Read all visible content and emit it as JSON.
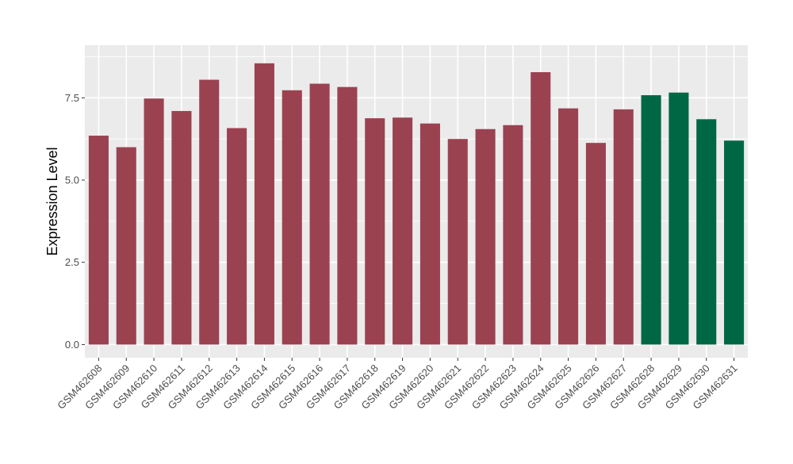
{
  "chart_data": {
    "type": "bar",
    "ylabel": "Expression Level",
    "ylim": [
      -0.4,
      9.1
    ],
    "yticks": [
      0.0,
      2.5,
      5.0,
      7.5
    ],
    "ytick_labels": [
      "0.0",
      "2.5",
      "5.0",
      "7.5"
    ],
    "grid": true,
    "categories": [
      "GSM462608",
      "GSM462609",
      "GSM462610",
      "GSM462611",
      "GSM462612",
      "GSM462613",
      "GSM462614",
      "GSM462615",
      "GSM462616",
      "GSM462617",
      "GSM462618",
      "GSM462619",
      "GSM462620",
      "GSM462621",
      "GSM462622",
      "GSM462623",
      "GSM462624",
      "GSM462625",
      "GSM462626",
      "GSM462627",
      "GSM462628",
      "GSM462629",
      "GSM462630",
      "GSM462631"
    ],
    "values": [
      6.35,
      6.0,
      7.48,
      7.1,
      8.05,
      6.58,
      8.55,
      7.73,
      7.93,
      7.83,
      6.88,
      6.9,
      6.72,
      6.25,
      6.55,
      6.67,
      8.28,
      7.18,
      6.13,
      7.15,
      7.58,
      7.66,
      6.85,
      6.2
    ],
    "groups": [
      1,
      1,
      1,
      1,
      1,
      1,
      1,
      1,
      1,
      1,
      1,
      1,
      1,
      1,
      1,
      1,
      1,
      1,
      1,
      1,
      2,
      2,
      2,
      2
    ],
    "colors": {
      "group1": "#9b4251",
      "group2": "#006744"
    },
    "panel_background": "#ebebeb",
    "grid_color": "#ffffff"
  }
}
